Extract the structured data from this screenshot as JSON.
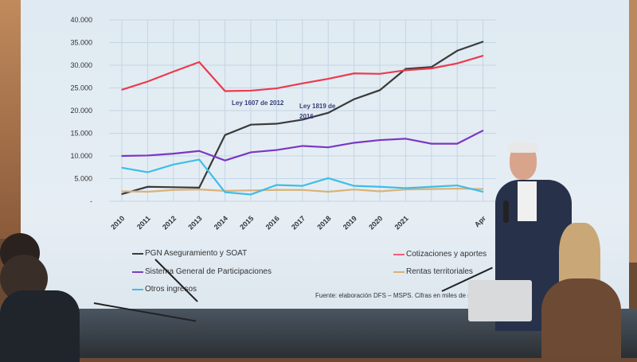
{
  "screen": {
    "annotations": [
      "Ley 1607 de 2012",
      "Ley 1819 de 2016"
    ],
    "source": "Fuente: elaboración DFS – MSPS. Cifras en miles de m",
    "legend": [
      {
        "label": "PGN  Aseguramiento y SOAT",
        "color": "#3c3c3c"
      },
      {
        "label": "Cotizaciones y aportes",
        "color": "#f0607a"
      },
      {
        "label": "Sistema General de Participaciones",
        "color": "#7a3fc0"
      },
      {
        "label": "Rentas territoriales",
        "color": "#d8b078"
      },
      {
        "label": "Otros ingresos",
        "color": "#45b8e6"
      }
    ]
  },
  "chart_data": {
    "type": "line",
    "categories": [
      "2010",
      "2011",
      "2012",
      "2013",
      "2014",
      "2015",
      "2016",
      "2017",
      "2018",
      "2019",
      "2020",
      "2021",
      "",
      "",
      "Apr"
    ],
    "ytick_labels": [
      "-",
      "5.000",
      "10.000",
      "15.000",
      "20.000",
      "25.000",
      "30.000",
      "35.000",
      "40.000"
    ],
    "ylim": [
      0,
      40000
    ],
    "grid": true,
    "legend_position": "bottom",
    "series": [
      {
        "name": "PGN  Aseguramiento y SOAT",
        "color": "#3a3a3a",
        "values": [
          1600,
          3200,
          3100,
          3000,
          14600,
          16900,
          17100,
          18000,
          19500,
          22500,
          24500,
          29200,
          29600,
          33200,
          35200
        ]
      },
      {
        "name": "Cotizaciones y aportes",
        "color": "#ec3a4e",
        "values": [
          24600,
          26400,
          28600,
          30700,
          24300,
          24400,
          24900,
          26000,
          27000,
          28200,
          28100,
          28900,
          29300,
          30400,
          32100
        ]
      },
      {
        "name": "Sistema General de Participaciones",
        "color": "#7a36c4",
        "values": [
          10000,
          10100,
          10500,
          11100,
          9000,
          10800,
          11300,
          12200,
          11900,
          12900,
          13500,
          13800,
          12700,
          12700,
          15600
        ]
      },
      {
        "name": "Rentas territoriales",
        "color": "#d9b27a",
        "values": [
          2200,
          2100,
          2500,
          2600,
          2300,
          2400,
          2500,
          2500,
          2100,
          2600,
          2200,
          2600,
          2700,
          2800,
          2700
        ]
      },
      {
        "name": "Otros ingresos",
        "color": "#3ebde8",
        "values": [
          7400,
          6400,
          8100,
          9200,
          2000,
          1500,
          3600,
          3400,
          5100,
          3400,
          3200,
          2900,
          3200,
          3500,
          2100
        ]
      }
    ]
  }
}
